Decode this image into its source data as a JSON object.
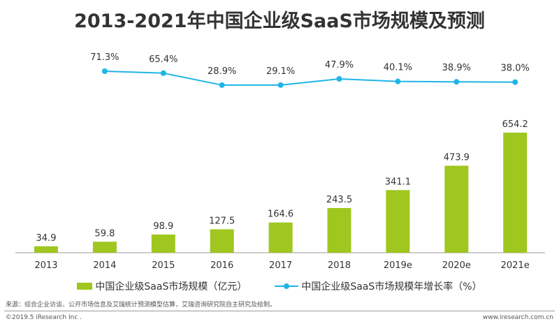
{
  "chart_data": {
    "type": "bar+line",
    "title": "2013-2021年中国企业级SaaS市场规模及预测",
    "categories": [
      "2013",
      "2014",
      "2015",
      "2016",
      "2017",
      "2018",
      "2019e",
      "2020e",
      "2021e"
    ],
    "series": [
      {
        "name": "中国企业级SaaS市场规模（亿元）",
        "type": "bar",
        "color": "#9fc71f",
        "values": [
          34.9,
          59.8,
          98.9,
          127.5,
          164.6,
          243.5,
          341.1,
          473.9,
          654.2
        ]
      },
      {
        "name": "中国企业级SaaS市场规模年增长率（%）",
        "type": "line",
        "color": "#1fb5e6",
        "values": [
          null,
          71.3,
          65.4,
          28.9,
          29.1,
          47.9,
          40.1,
          38.9,
          38.0
        ]
      }
    ],
    "grid": false,
    "legend_placement": "bottom"
  },
  "source": "来源：综合企业访谈、公开市场信息及艾瑞统计预测模型估算，艾瑞咨询研究院自主研究及绘制。",
  "copyright": "©2019.5 iResearch Inc .",
  "website": "www.iresearch.com.cn"
}
